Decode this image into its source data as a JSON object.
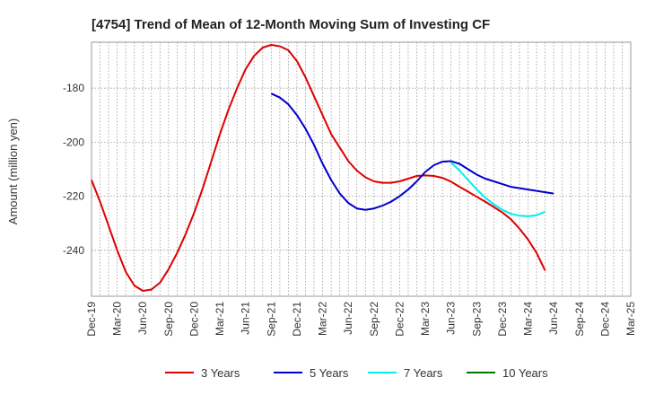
{
  "chart_data": {
    "type": "line",
    "title": "[4754]  Trend of Mean of 12-Month Moving Sum of Investing CF",
    "xlabel": "",
    "ylabel": "Amount (million yen)",
    "ylim": [
      -257,
      -163
    ],
    "yticks": [
      -180,
      -200,
      -220,
      -240
    ],
    "grid": true,
    "legend_position": "bottom",
    "x_start": "Dec-19",
    "x_end": "Mar-25",
    "xticks": [
      "Dec-19",
      "Mar-20",
      "Jun-20",
      "Sep-20",
      "Dec-20",
      "Mar-21",
      "Jun-21",
      "Sep-21",
      "Dec-21",
      "Mar-22",
      "Jun-22",
      "Sep-22",
      "Dec-22",
      "Mar-23",
      "Jun-23",
      "Sep-23",
      "Dec-23",
      "Mar-24",
      "Jun-24",
      "Sep-24",
      "Dec-24",
      "Mar-25"
    ],
    "series": [
      {
        "name": "3 Years",
        "color": "#dd0000",
        "start_index": 0,
        "values": [
          -214,
          -222,
          -231,
          -240,
          -248,
          -253,
          -255,
          -254.5,
          -252,
          -247,
          -241,
          -234,
          -226,
          -217,
          -207,
          -197,
          -188,
          -180,
          -173,
          -168,
          -165,
          -164,
          -164.5,
          -166,
          -170,
          -176,
          -183,
          -190,
          -197,
          -202,
          -207,
          -210.5,
          -213,
          -214.5,
          -215,
          -215,
          -214.5,
          -213.5,
          -212.5,
          -212.3,
          -212.5,
          -213.2,
          -214.6,
          -216.5,
          -218.3,
          -220.2,
          -222,
          -224,
          -226,
          -228.5,
          -232,
          -236,
          -241,
          -247.5
        ]
      },
      {
        "name": "5 Years",
        "color": "#0000cc",
        "start_index": 21,
        "values": [
          -182,
          -183.5,
          -186,
          -190,
          -195,
          -201,
          -208,
          -214,
          -219,
          -222.5,
          -224.5,
          -225,
          -224.5,
          -223.5,
          -222,
          -220,
          -217.5,
          -214.5,
          -211,
          -208.5,
          -207.2,
          -207,
          -208,
          -210,
          -212,
          -213.5,
          -214.5,
          -215.5,
          -216.5,
          -217,
          -217.5,
          -218,
          -218.5,
          -219
        ]
      },
      {
        "name": "7 Years",
        "color": "#00eeee",
        "start_index": 42,
        "values": [
          -207.5,
          -210.5,
          -214,
          -217.5,
          -220.5,
          -223,
          -225,
          -226.5,
          -227.2,
          -227.4,
          -227,
          -225.7
        ]
      },
      {
        "name": "10 Years",
        "color": "#007700",
        "start_index": 0,
        "values": []
      }
    ]
  }
}
